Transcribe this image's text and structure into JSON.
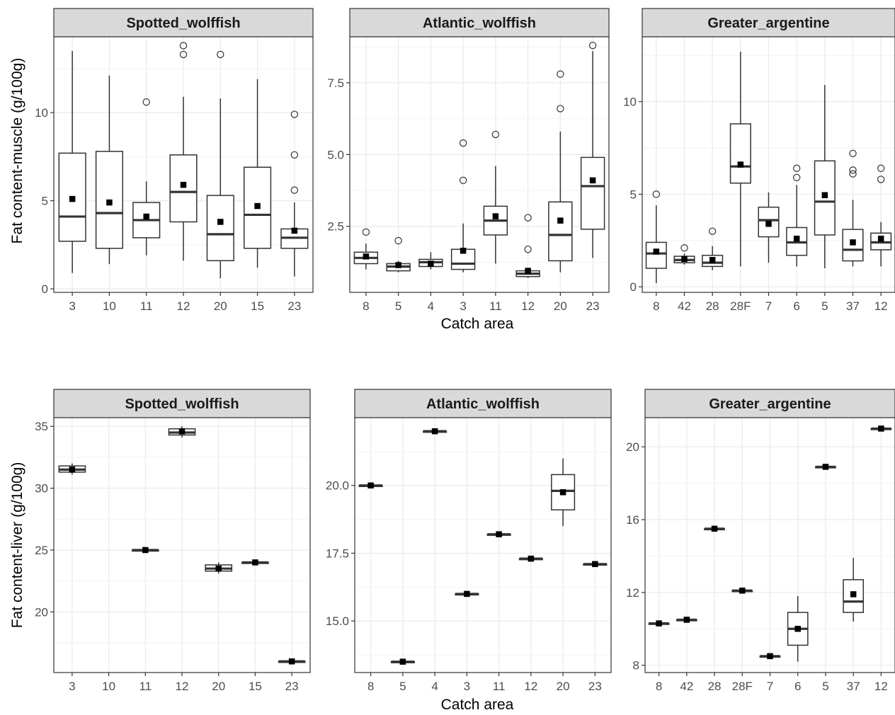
{
  "labels": {
    "ylabel_top": "Fat content-muscle (g/100g)",
    "ylabel_bottom": "Fat content-liver (g/100g)",
    "xlabel": "Catch area"
  },
  "colors": {
    "strip_bg": "#d9d9d9",
    "frame": "#333333",
    "grid": "#ebebeb",
    "box": "#333333",
    "mean": "#000000"
  },
  "chart_data": [
    {
      "type": "boxplot",
      "row": "top",
      "title": "Spotted_wolffish",
      "ylabel": "Fat content-muscle (g/100g)",
      "xlabel": "",
      "ylim": [
        -0.2,
        14.3
      ],
      "yticks": [
        0,
        5,
        10
      ],
      "ytick_labels": [
        "0",
        "5",
        "10"
      ],
      "categories": [
        "3",
        "10",
        "11",
        "12",
        "20",
        "15",
        "23"
      ],
      "boxes": [
        {
          "cat": "3",
          "min": 0.9,
          "q1": 2.7,
          "median": 4.1,
          "q3": 7.7,
          "max": 13.5,
          "mean": 5.1,
          "outliers": []
        },
        {
          "cat": "10",
          "min": 1.4,
          "q1": 2.3,
          "median": 4.3,
          "q3": 7.8,
          "max": 12.1,
          "mean": 4.9,
          "outliers": []
        },
        {
          "cat": "11",
          "min": 1.9,
          "q1": 2.9,
          "median": 3.9,
          "q3": 4.9,
          "max": 6.1,
          "mean": 4.1,
          "outliers": [
            10.6
          ]
        },
        {
          "cat": "12",
          "min": 1.6,
          "q1": 3.8,
          "median": 5.5,
          "q3": 7.6,
          "max": 10.9,
          "mean": 5.9,
          "outliers": [
            13.3,
            13.8
          ]
        },
        {
          "cat": "20",
          "min": 0.6,
          "q1": 1.6,
          "median": 3.1,
          "q3": 5.3,
          "max": 10.8,
          "mean": 3.8,
          "outliers": [
            13.3
          ]
        },
        {
          "cat": "15",
          "min": 1.2,
          "q1": 2.3,
          "median": 4.2,
          "q3": 6.9,
          "max": 11.9,
          "mean": 4.7,
          "outliers": []
        },
        {
          "cat": "23",
          "min": 0.7,
          "q1": 2.3,
          "median": 2.9,
          "q3": 3.4,
          "max": 4.9,
          "mean": 3.3,
          "outliers": [
            5.6,
            7.6,
            9.9
          ]
        }
      ]
    },
    {
      "type": "boxplot",
      "row": "top",
      "title": "Atlantic_wolffish",
      "ylabel": "",
      "xlabel": "Catch area",
      "ylim": [
        0.2,
        9.1
      ],
      "yticks": [
        2.5,
        5.0,
        7.5
      ],
      "ytick_labels": [
        "2.5",
        "5.0",
        "7.5"
      ],
      "categories": [
        "8",
        "5",
        "4",
        "3",
        "11",
        "12",
        "20",
        "23"
      ],
      "boxes": [
        {
          "cat": "8",
          "min": 1.0,
          "q1": 1.2,
          "median": 1.4,
          "q3": 1.6,
          "max": 1.9,
          "mean": 1.45,
          "outliers": [
            2.3
          ]
        },
        {
          "cat": "5",
          "min": 0.9,
          "q1": 0.95,
          "median": 1.1,
          "q3": 1.2,
          "max": 1.3,
          "mean": 1.15,
          "outliers": [
            2.0
          ]
        },
        {
          "cat": "4",
          "min": 1.0,
          "q1": 1.1,
          "median": 1.25,
          "q3": 1.35,
          "max": 1.6,
          "mean": 1.2,
          "outliers": []
        },
        {
          "cat": "3",
          "min": 0.9,
          "q1": 1.0,
          "median": 1.2,
          "q3": 1.7,
          "max": 2.6,
          "mean": 1.65,
          "outliers": [
            4.1,
            5.4
          ]
        },
        {
          "cat": "11",
          "min": 1.2,
          "q1": 2.2,
          "median": 2.7,
          "q3": 3.2,
          "max": 4.6,
          "mean": 2.85,
          "outliers": [
            5.7
          ]
        },
        {
          "cat": "12",
          "min": 0.7,
          "q1": 0.75,
          "median": 0.85,
          "q3": 0.95,
          "max": 1.05,
          "mean": 0.95,
          "outliers": [
            1.7,
            2.8
          ]
        },
        {
          "cat": "20",
          "min": 0.9,
          "q1": 1.3,
          "median": 2.2,
          "q3": 3.35,
          "max": 5.8,
          "mean": 2.7,
          "outliers": [
            6.6,
            7.8
          ]
        },
        {
          "cat": "23",
          "min": 1.4,
          "q1": 2.4,
          "median": 3.9,
          "q3": 4.9,
          "max": 8.6,
          "mean": 4.1,
          "outliers": [
            8.8
          ]
        }
      ]
    },
    {
      "type": "boxplot",
      "row": "top",
      "title": "Greater_argentine",
      "ylabel": "",
      "xlabel": "",
      "ylim": [
        -0.3,
        13.5
      ],
      "yticks": [
        0,
        5,
        10
      ],
      "ytick_labels": [
        "0",
        "5",
        "10"
      ],
      "categories": [
        "8",
        "42",
        "28",
        "28F",
        "7",
        "6",
        "5",
        "37",
        "12"
      ],
      "boxes": [
        {
          "cat": "8",
          "min": 0.2,
          "q1": 1.0,
          "median": 1.8,
          "q3": 2.4,
          "max": 4.4,
          "mean": 1.9,
          "outliers": [
            5.0
          ]
        },
        {
          "cat": "42",
          "min": 1.2,
          "q1": 1.3,
          "median": 1.45,
          "q3": 1.65,
          "max": 1.8,
          "mean": 1.5,
          "outliers": [
            2.1
          ]
        },
        {
          "cat": "28",
          "min": 0.9,
          "q1": 1.1,
          "median": 1.3,
          "q3": 1.7,
          "max": 2.2,
          "mean": 1.45,
          "outliers": [
            3.0
          ]
        },
        {
          "cat": "28F",
          "min": 1.1,
          "q1": 5.6,
          "median": 6.5,
          "q3": 8.8,
          "max": 12.7,
          "mean": 6.6,
          "outliers": []
        },
        {
          "cat": "7",
          "min": 1.3,
          "q1": 2.7,
          "median": 3.6,
          "q3": 4.3,
          "max": 5.1,
          "mean": 3.4,
          "outliers": []
        },
        {
          "cat": "6",
          "min": 1.1,
          "q1": 1.7,
          "median": 2.4,
          "q3": 3.2,
          "max": 5.5,
          "mean": 2.6,
          "outliers": [
            5.9,
            6.4
          ]
        },
        {
          "cat": "5",
          "min": 1.0,
          "q1": 2.8,
          "median": 4.6,
          "q3": 6.8,
          "max": 10.9,
          "mean": 4.95,
          "outliers": []
        },
        {
          "cat": "37",
          "min": 1.1,
          "q1": 1.4,
          "median": 2.0,
          "q3": 3.1,
          "max": 4.7,
          "mean": 2.4,
          "outliers": [
            6.1,
            6.3,
            7.2
          ]
        },
        {
          "cat": "12",
          "min": 1.1,
          "q1": 2.0,
          "median": 2.4,
          "q3": 2.9,
          "max": 3.5,
          "mean": 2.6,
          "outliers": [
            5.8,
            6.4
          ]
        }
      ]
    },
    {
      "type": "boxplot",
      "row": "bottom",
      "title": "Spotted_wolffish",
      "ylabel": "Fat content-liver (g/100g)",
      "xlabel": "",
      "ylim": [
        15.1,
        35.7
      ],
      "yticks": [
        20,
        25,
        30,
        35
      ],
      "ytick_labels": [
        "20",
        "25",
        "30",
        "35"
      ],
      "categories": [
        "3",
        "10",
        "11",
        "12",
        "20",
        "15",
        "23"
      ],
      "boxes": [
        {
          "cat": "3",
          "min": 31.1,
          "q1": 31.3,
          "median": 31.5,
          "q3": 31.8,
          "max": 32.0,
          "mean": 31.5
        },
        {
          "cat": "11",
          "min": 25.0,
          "q1": 25.0,
          "median": 25.0,
          "q3": 25.0,
          "max": 25.0,
          "mean": 25.0
        },
        {
          "cat": "12",
          "min": 34.1,
          "q1": 34.3,
          "median": 34.5,
          "q3": 34.8,
          "max": 35.0,
          "mean": 34.6
        },
        {
          "cat": "20",
          "min": 23.1,
          "q1": 23.3,
          "median": 23.5,
          "q3": 23.8,
          "max": 24.0,
          "mean": 23.5
        },
        {
          "cat": "15",
          "min": 24.0,
          "q1": 24.0,
          "median": 24.0,
          "q3": 24.0,
          "max": 24.0,
          "mean": 24.0
        },
        {
          "cat": "23",
          "min": 16.0,
          "q1": 16.0,
          "median": 16.0,
          "q3": 16.0,
          "max": 16.0,
          "mean": 16.0
        }
      ]
    },
    {
      "type": "boxplot",
      "row": "bottom",
      "title": "Atlantic_wolffish",
      "ylabel": "",
      "xlabel": "Catch area",
      "ylim": [
        13.1,
        22.5
      ],
      "yticks": [
        15.0,
        17.5,
        20.0
      ],
      "ytick_labels": [
        "15.0",
        "17.5",
        "20.0"
      ],
      "categories": [
        "8",
        "5",
        "4",
        "3",
        "11",
        "12",
        "20",
        "23"
      ],
      "boxes": [
        {
          "cat": "8",
          "min": 20.0,
          "q1": 20.0,
          "median": 20.0,
          "q3": 20.0,
          "max": 20.0,
          "mean": 20.0
        },
        {
          "cat": "5",
          "min": 13.5,
          "q1": 13.5,
          "median": 13.5,
          "q3": 13.5,
          "max": 13.5,
          "mean": 13.5
        },
        {
          "cat": "4",
          "min": 22.0,
          "q1": 22.0,
          "median": 22.0,
          "q3": 22.0,
          "max": 22.0,
          "mean": 22.0
        },
        {
          "cat": "3",
          "min": 16.0,
          "q1": 16.0,
          "median": 16.0,
          "q3": 16.0,
          "max": 16.0,
          "mean": 16.0
        },
        {
          "cat": "11",
          "min": 18.2,
          "q1": 18.2,
          "median": 18.2,
          "q3": 18.2,
          "max": 18.2,
          "mean": 18.2
        },
        {
          "cat": "12",
          "min": 17.3,
          "q1": 17.3,
          "median": 17.3,
          "q3": 17.3,
          "max": 17.3,
          "mean": 17.3
        },
        {
          "cat": "20",
          "min": 18.5,
          "q1": 19.1,
          "median": 19.8,
          "q3": 20.4,
          "max": 21.0,
          "mean": 19.75
        },
        {
          "cat": "23",
          "min": 17.1,
          "q1": 17.1,
          "median": 17.1,
          "q3": 17.1,
          "max": 17.1,
          "mean": 17.1
        }
      ]
    },
    {
      "type": "boxplot",
      "row": "bottom",
      "title": "Greater_argentine",
      "ylabel": "",
      "xlabel": "",
      "ylim": [
        7.6,
        21.6
      ],
      "yticks": [
        8,
        12,
        16,
        20
      ],
      "ytick_labels": [
        "8",
        "12",
        "16",
        "20"
      ],
      "categories": [
        "8",
        "42",
        "28",
        "28F",
        "7",
        "6",
        "5",
        "37",
        "12"
      ],
      "boxes": [
        {
          "cat": "8",
          "min": 10.3,
          "q1": 10.3,
          "median": 10.3,
          "q3": 10.3,
          "max": 10.3,
          "mean": 10.3
        },
        {
          "cat": "42",
          "min": 10.5,
          "q1": 10.5,
          "median": 10.5,
          "q3": 10.5,
          "max": 10.5,
          "mean": 10.5
        },
        {
          "cat": "28",
          "min": 15.5,
          "q1": 15.5,
          "median": 15.5,
          "q3": 15.5,
          "max": 15.5,
          "mean": 15.5
        },
        {
          "cat": "28F",
          "min": 12.1,
          "q1": 12.1,
          "median": 12.1,
          "q3": 12.1,
          "max": 12.1,
          "mean": 12.1
        },
        {
          "cat": "7",
          "min": 8.5,
          "q1": 8.5,
          "median": 8.5,
          "q3": 8.5,
          "max": 8.5,
          "mean": 8.5
        },
        {
          "cat": "6",
          "min": 8.2,
          "q1": 9.1,
          "median": 10.0,
          "q3": 10.9,
          "max": 11.8,
          "mean": 10.0
        },
        {
          "cat": "5",
          "min": 18.9,
          "q1": 18.9,
          "median": 18.9,
          "q3": 18.9,
          "max": 18.9,
          "mean": 18.9
        },
        {
          "cat": "37",
          "min": 10.4,
          "q1": 10.9,
          "median": 11.5,
          "q3": 12.7,
          "max": 13.9,
          "mean": 11.9
        },
        {
          "cat": "12",
          "min": 21.0,
          "q1": 21.0,
          "median": 21.0,
          "q3": 21.0,
          "max": 21.0,
          "mean": 21.0
        }
      ]
    }
  ]
}
